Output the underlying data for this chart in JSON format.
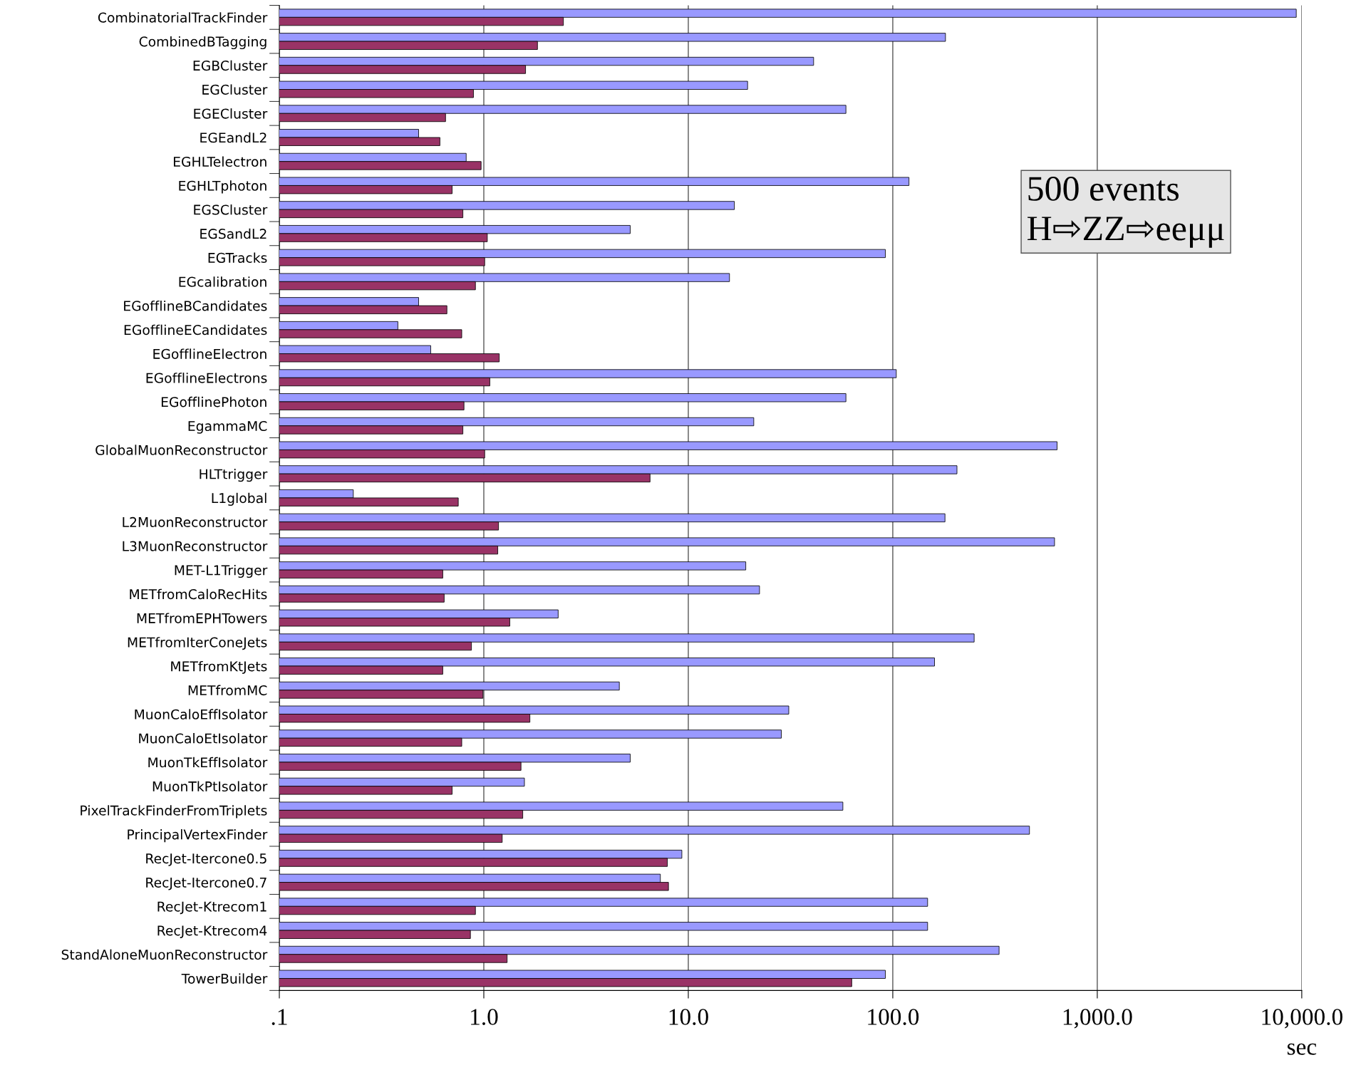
{
  "chart_data": {
    "type": "bar",
    "orientation": "horizontal",
    "log": "x",
    "grid": "x",
    "xlabel": "sec",
    "categories": [
      "CombinatorialTrackFinder",
      "CombinedBTagging",
      "EGBCluster",
      "EGCluster",
      "EGECluster",
      "EGEandL2",
      "EGHLTelectron",
      "EGHLTphoton",
      "EGSCluster",
      "EGSandL2",
      "EGTracks",
      "EGcalibration",
      "EGofflineBCandidates",
      "EGofflineECandidates",
      "EGofflineElectron",
      "EGofflineElectrons",
      "EGofflinePhoton",
      "EgammaMC",
      "GlobalMuonReconstructor",
      "HLTtrigger",
      "L1global",
      "L2MuonReconstructor",
      "L3MuonReconstructor",
      "MET-L1Trigger",
      "METfromCaloRecHits",
      "METfromEPHTowers",
      "METfromIterConeJets",
      "METfromKtJets",
      "METfromMC",
      "MuonCaloEffIsolator",
      "MuonCaloEtIsolator",
      "MuonTkEffIsolator",
      "MuonTkPtIsolator",
      "PixelTrackFinderFromTriplets",
      "PrincipalVertexFinder",
      "RecJet-Itercone0.5",
      "RecJet-Itercone0.7",
      "RecJet-Ktrecom1",
      "RecJet-Ktrecom4",
      "StandAloneMuonReconstructor",
      "TowerBuilder"
    ],
    "series": [
      {
        "color": "#9999ff",
        "values": [
          9400,
          181,
          41,
          19.5,
          59,
          0.48,
          0.82,
          120,
          16.8,
          5.2,
          92,
          15.9,
          0.48,
          0.38,
          0.55,
          104,
          59,
          20.9,
          636,
          206,
          0.23,
          180,
          618,
          19.1,
          22.3,
          2.31,
          250,
          160,
          4.6,
          31,
          28.5,
          5.2,
          1.58,
          57,
          466,
          9.3,
          7.3,
          148,
          148,
          331,
          92
        ]
      },
      {
        "color": "#993366",
        "values": [
          2.45,
          1.83,
          1.6,
          0.89,
          0.65,
          0.61,
          0.97,
          0.7,
          0.79,
          1.04,
          1.01,
          0.91,
          0.66,
          0.78,
          1.19,
          1.07,
          0.8,
          0.79,
          1.01,
          6.5,
          0.75,
          1.18,
          1.17,
          0.63,
          0.64,
          1.34,
          0.87,
          0.63,
          0.99,
          1.68,
          0.78,
          1.52,
          0.7,
          1.55,
          1.23,
          7.9,
          8.0,
          0.91,
          0.86,
          1.3,
          63
        ]
      }
    ],
    "xlim": [
      0.1,
      10000
    ],
    "xticks": [
      {
        "value": 0.1,
        "label": ".1"
      },
      {
        "value": 1,
        "label": "1.0"
      },
      {
        "value": 10,
        "label": "10.0"
      },
      {
        "value": 100,
        "label": "100.0"
      },
      {
        "value": 1000,
        "label": "1,000.0"
      },
      {
        "value": 10000,
        "label": "10,000.0"
      }
    ],
    "annotations": [
      "500 events",
      "H⇨ZZ⇨eeμμ"
    ]
  }
}
